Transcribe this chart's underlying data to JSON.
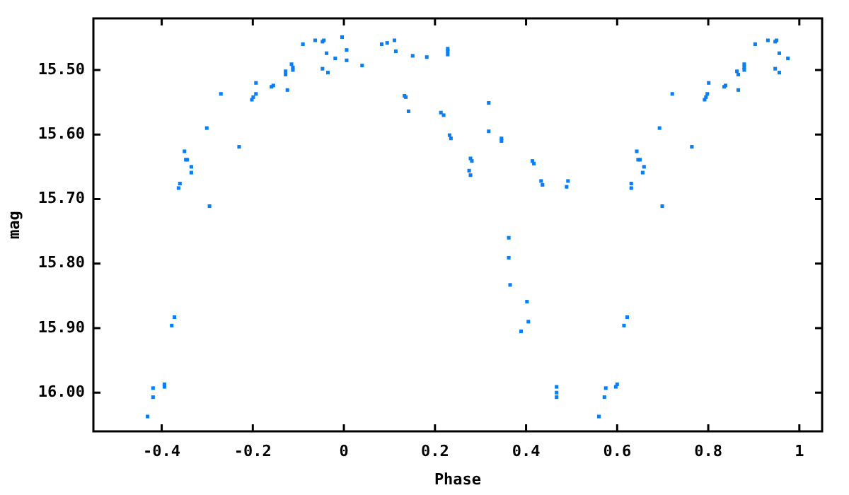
{
  "chart_data": {
    "type": "scatter",
    "xlabel": "Phase",
    "ylabel": "mag",
    "marker": "square",
    "legend": false,
    "xlim": [
      -0.55,
      1.05
    ],
    "xticks": [
      -0.4,
      -0.2,
      0,
      0.2,
      0.4,
      0.6,
      0.8,
      1
    ],
    "ylim": [
      16.06,
      15.42
    ],
    "yticks": [
      {
        "value": 15.5,
        "label": "15.50"
      },
      {
        "value": 15.6,
        "label": "15.60"
      },
      {
        "value": 15.7,
        "label": "15.70"
      },
      {
        "value": 15.8,
        "label": "15.80"
      },
      {
        "value": 15.9,
        "label": "15.90"
      },
      {
        "value": 16.0,
        "label": "16.00"
      }
    ],
    "series": [
      {
        "color": "#0a7ff5",
        "x": [
          -0.431,
          -0.419,
          -0.419,
          -0.394,
          -0.394,
          -0.378,
          -0.372,
          -0.363,
          -0.36,
          -0.35,
          -0.347,
          -0.344,
          -0.335,
          -0.335,
          -0.301,
          -0.295,
          -0.27,
          -0.23,
          -0.202,
          -0.199,
          -0.193,
          -0.193,
          -0.159,
          -0.155,
          -0.128,
          -0.128,
          -0.124,
          -0.115,
          -0.112,
          -0.112,
          -0.09,
          -0.063,
          -0.047,
          -0.044,
          -0.038,
          -0.047,
          -0.035,
          -0.019,
          -0.004,
          0.006,
          0.006,
          0.04,
          0.083,
          0.095,
          0.111,
          0.114,
          0.151,
          0.182,
          0.228,
          0.228,
          0.228,
          0.133,
          0.136,
          0.142,
          0.213,
          0.219,
          0.232,
          0.235,
          0.318,
          0.318,
          0.346,
          0.346,
          0.278,
          0.281,
          0.275,
          0.278,
          0.414,
          0.417,
          0.433,
          0.436,
          0.492,
          0.489,
          0.362,
          0.362,
          0.365,
          0.402,
          0.405,
          0.389,
          0.467,
          0.467,
          0.467,
          0.575,
          0.572,
          0.56,
          0.597,
          0.6,
          0.615,
          0.622,
          0.631,
          0.631,
          0.643,
          0.646,
          0.65,
          0.659,
          0.656,
          0.693,
          0.699,
          0.721,
          0.764,
          0.792,
          0.795,
          0.798,
          0.801,
          0.835,
          0.838,
          0.863,
          0.866,
          0.866,
          0.879,
          0.879,
          0.879,
          0.903,
          0.931,
          0.947,
          0.95,
          0.956,
          0.947,
          0.956,
          0.975
        ],
        "values": [
          16.037,
          15.993,
          16.007,
          15.987,
          15.991,
          15.896,
          15.883,
          15.683,
          15.676,
          15.626,
          15.639,
          15.639,
          15.65,
          15.659,
          15.59,
          15.711,
          15.537,
          15.619,
          15.546,
          15.542,
          15.537,
          15.52,
          15.526,
          15.524,
          15.502,
          15.507,
          15.531,
          15.491,
          15.496,
          15.5,
          15.46,
          15.454,
          15.456,
          15.454,
          15.474,
          15.498,
          15.504,
          15.482,
          15.449,
          15.469,
          15.485,
          15.493,
          15.46,
          15.458,
          15.454,
          15.471,
          15.478,
          15.48,
          15.467,
          15.471,
          15.476,
          15.54,
          15.542,
          15.564,
          15.566,
          15.57,
          15.601,
          15.606,
          15.551,
          15.595,
          15.606,
          15.61,
          15.637,
          15.641,
          15.656,
          15.663,
          15.641,
          15.645,
          15.672,
          15.678,
          15.672,
          15.681,
          15.76,
          15.791,
          15.833,
          15.859,
          15.89,
          15.905,
          15.991,
          16.0,
          16.007,
          15.993,
          16.007,
          16.037,
          15.991,
          15.987,
          15.896,
          15.883,
          15.676,
          15.683,
          15.626,
          15.639,
          15.639,
          15.65,
          15.659,
          15.59,
          15.711,
          15.537,
          15.619,
          15.546,
          15.542,
          15.537,
          15.52,
          15.526,
          15.524,
          15.502,
          15.507,
          15.531,
          15.491,
          15.496,
          15.5,
          15.46,
          15.454,
          15.456,
          15.454,
          15.474,
          15.498,
          15.504,
          15.482
        ]
      }
    ]
  }
}
